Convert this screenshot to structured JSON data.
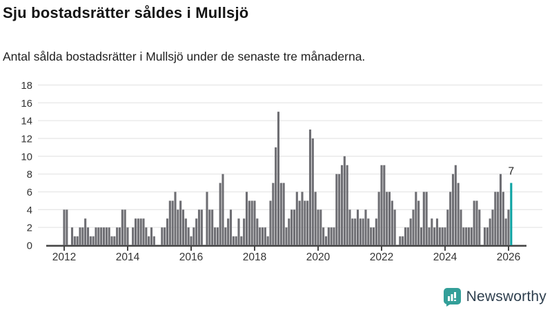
{
  "header": {
    "title": "Sju bostadsrätter såldes i Mullsjö",
    "subtitle": "Antal sålda bostadsrätter i Mullsjö under de senaste tre månaderna."
  },
  "chart_data": {
    "type": "bar",
    "title": "Sju bostadsrätter såldes i Mullsjö",
    "xlabel": "",
    "ylabel": "",
    "x_start": "2012-01",
    "x_end": "2026-02",
    "x_unit": "month",
    "values": [
      4,
      4,
      0,
      2,
      1,
      1,
      2,
      2,
      3,
      2,
      1,
      1,
      2,
      2,
      2,
      2,
      2,
      2,
      1,
      1,
      2,
      2,
      4,
      4,
      2,
      0,
      2,
      3,
      3,
      3,
      3,
      2,
      1,
      2,
      1,
      0,
      0,
      2,
      2,
      3,
      5,
      5,
      6,
      4,
      5,
      4,
      3,
      2,
      1,
      2,
      3,
      4,
      4,
      0,
      6,
      4,
      4,
      2,
      2,
      7,
      8,
      2,
      3,
      4,
      1,
      1,
      3,
      1,
      3,
      6,
      5,
      5,
      5,
      3,
      2,
      2,
      2,
      1,
      5,
      7,
      11,
      15,
      7,
      7,
      2,
      3,
      4,
      4,
      6,
      5,
      6,
      5,
      5,
      13,
      12,
      6,
      4,
      4,
      2,
      1,
      2,
      2,
      2,
      8,
      8,
      9,
      10,
      9,
      4,
      3,
      3,
      4,
      3,
      3,
      4,
      3,
      2,
      2,
      3,
      6,
      9,
      9,
      6,
      6,
      5,
      4,
      0,
      1,
      1,
      2,
      2,
      3,
      4,
      6,
      5,
      2,
      6,
      6,
      2,
      3,
      2,
      3,
      2,
      2,
      2,
      4,
      6,
      8,
      9,
      7,
      4,
      2,
      2,
      2,
      2,
      5,
      5,
      4,
      0,
      2,
      2,
      3,
      4,
      6,
      6,
      8,
      6,
      3,
      4,
      7
    ],
    "highlight": {
      "index": 169,
      "value": 7,
      "label": "7"
    },
    "y_ticks": [
      0,
      2,
      4,
      6,
      8,
      10,
      12,
      14,
      16,
      18
    ],
    "x_tick_labels": [
      "2012",
      "2014",
      "2016",
      "2018",
      "2020",
      "2022",
      "2024",
      "2026"
    ],
    "ylim": [
      0,
      18
    ],
    "grid": true,
    "legend": "none",
    "colors": {
      "bar": "#6e6e73",
      "highlight": "#0da3a3",
      "grid": "#e7e7e7",
      "axis": "#454545",
      "tick_label": "#333333",
      "value_label": "#222222"
    }
  },
  "footer": {
    "brand": "Newsworthy",
    "logo_teal": "#339f99",
    "logo_glyph": "bar-chart-in-speech-bubble"
  }
}
